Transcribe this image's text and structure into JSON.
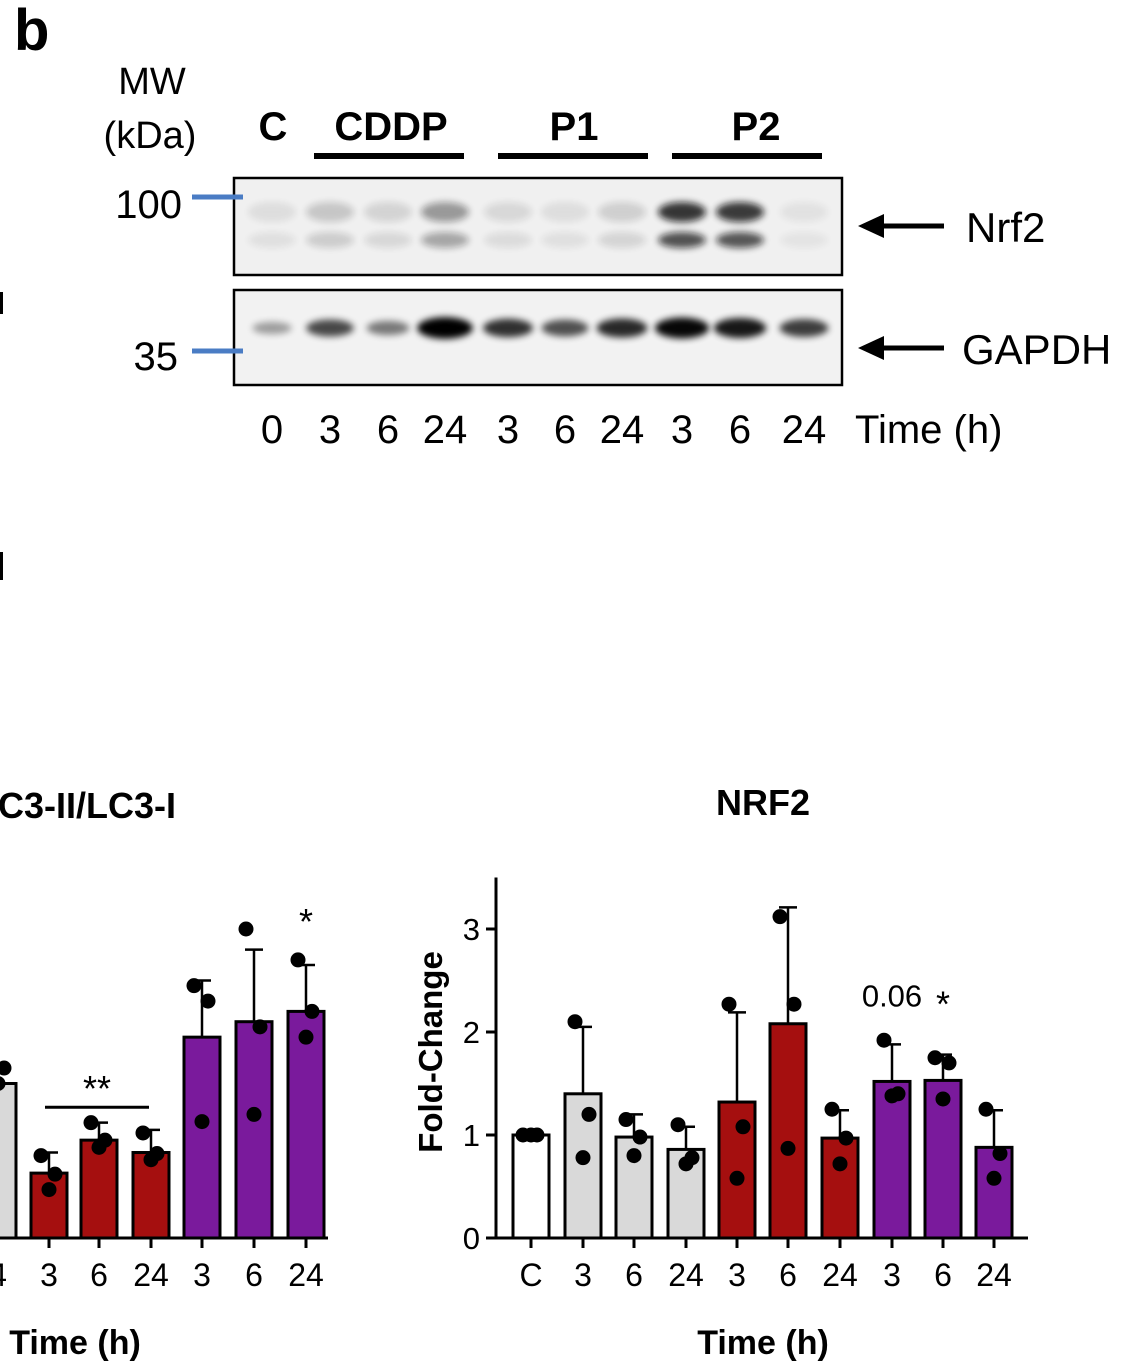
{
  "panel_label": "b",
  "western_blot": {
    "mw_label_line1": "MW",
    "mw_label_line2": "(kDa)",
    "markers": [
      "100",
      "35"
    ],
    "groups": [
      {
        "label": "C",
        "underline": false
      },
      {
        "label": "CDDP",
        "underline": true
      },
      {
        "label": "P1",
        "underline": true
      },
      {
        "label": "P2",
        "underline": true
      }
    ],
    "bands": [
      "Nrf2",
      "GAPDH"
    ],
    "lanes": [
      "0",
      "3",
      "6",
      "24",
      "3",
      "6",
      "24",
      "3",
      "6",
      "24"
    ],
    "lane_axis_label": "Time (h)",
    "nrf2_intensity": [
      0.08,
      0.18,
      0.12,
      0.38,
      0.1,
      0.08,
      0.14,
      0.82,
      0.8,
      0.06
    ],
    "gapdh_intensity": [
      0.3,
      0.65,
      0.45,
      0.98,
      0.75,
      0.62,
      0.78,
      0.92,
      0.85,
      0.7
    ]
  },
  "colors": {
    "marker_blue": "#4a7cc4",
    "control": "#ffffff",
    "cddp": "#d9d9d9",
    "p1": "#a50f0f",
    "p2": "#7a1a9c"
  },
  "chart_data": [
    {
      "type": "bar",
      "title": "C3-II/LC3-I",
      "xlabel": "Time (h)",
      "ylabel": "",
      "categories": [
        "4",
        "3",
        "6",
        "24",
        "3",
        "6",
        "24"
      ],
      "groups": [
        "CDDP",
        "P1",
        "P1",
        "P1",
        "P2",
        "P2",
        "P2"
      ],
      "values": [
        1.5,
        0.63,
        0.95,
        0.83,
        1.95,
        2.1,
        2.2
      ],
      "errors": [
        0.2,
        0.2,
        0.17,
        0.22,
        0.55,
        0.7,
        0.45
      ],
      "points": [
        [
          1.75,
          1.65,
          1.5
        ],
        [
          0.8,
          0.62,
          0.47
        ],
        [
          1.12,
          0.95,
          0.88
        ],
        [
          1.02,
          0.82,
          0.76
        ],
        [
          2.45,
          2.3,
          1.13
        ],
        [
          3.0,
          2.05,
          1.2
        ],
        [
          2.7,
          2.2,
          1.95
        ]
      ],
      "annotations": [
        {
          "text": "**",
          "x_from": 1,
          "x_to": 3,
          "y": 1.27
        },
        {
          "text": "*",
          "x": 6,
          "y": 2.95
        }
      ],
      "ylim": [
        0,
        3.5
      ],
      "grid": false,
      "legend": "none"
    },
    {
      "type": "bar",
      "title": "NRF2",
      "xlabel": "Time (h)",
      "ylabel": "Fold-Change",
      "categories": [
        "C",
        "3",
        "6",
        "24",
        "3",
        "6",
        "24",
        "3",
        "6",
        "24"
      ],
      "groups": [
        "C",
        "CDDP",
        "CDDP",
        "CDDP",
        "P1",
        "P1",
        "P1",
        "P2",
        "P2",
        "P2"
      ],
      "values": [
        1.0,
        1.4,
        0.98,
        0.86,
        1.32,
        2.08,
        0.97,
        1.52,
        1.53,
        0.88
      ],
      "errors": [
        0.0,
        0.65,
        0.22,
        0.22,
        0.87,
        1.13,
        0.27,
        0.36,
        0.25,
        0.36
      ],
      "points": [
        [
          1.0,
          1.0,
          1.0
        ],
        [
          2.1,
          1.2,
          0.78
        ],
        [
          1.15,
          0.98,
          0.8
        ],
        [
          1.1,
          0.78,
          0.72
        ],
        [
          2.27,
          1.08,
          0.58
        ],
        [
          3.12,
          2.27,
          0.87
        ],
        [
          1.25,
          0.97,
          0.72
        ],
        [
          1.92,
          1.4,
          1.38
        ],
        [
          1.75,
          1.7,
          1.35
        ],
        [
          1.25,
          0.82,
          0.58
        ]
      ],
      "annotations": [
        {
          "text": "0.06",
          "x": 7,
          "y": 2.25
        },
        {
          "text": "*",
          "x": 8,
          "y": 2.15
        }
      ],
      "yticks": [
        "0",
        "1",
        "2",
        "3"
      ],
      "ylim": [
        0,
        3.5
      ],
      "grid": false,
      "legend": "none"
    }
  ]
}
